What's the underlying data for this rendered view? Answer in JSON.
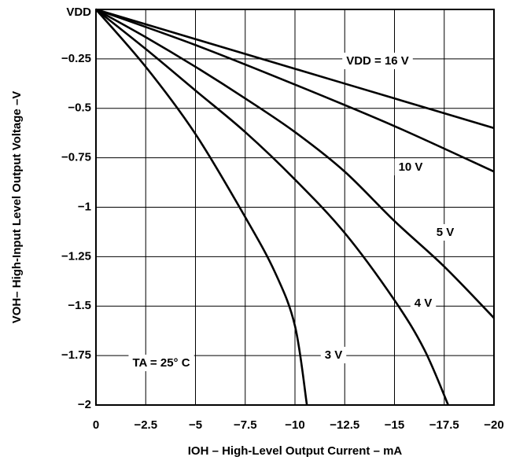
{
  "chart_data": {
    "type": "line",
    "x_label": "IOH – High-Level Output Current – mA",
    "y_label": "VOH– High-Input Level Output Voltage –V",
    "annotation": "TA = 25° C",
    "xlim": [
      0,
      -20
    ],
    "ylim": [
      -2,
      0
    ],
    "xticks": [
      0,
      {
        "value": -2.5,
        "label": "−2.5"
      },
      {
        "value": -5,
        "label": "−5"
      },
      {
        "value": -7.5,
        "label": "−7.5"
      },
      {
        "value": -10,
        "label": "−10"
      },
      {
        "value": -12.5,
        "label": "−12.5"
      },
      {
        "value": -15,
        "label": "−15"
      },
      {
        "value": -17.5,
        "label": "−17.5"
      },
      {
        "value": -20,
        "label": "−20"
      }
    ],
    "yticks": [
      {
        "value": 0,
        "label": "VDD"
      },
      {
        "value": -0.25,
        "label": "−0.25"
      },
      {
        "value": -0.5,
        "label": "−0.5"
      },
      {
        "value": -0.75,
        "label": "−0.75"
      },
      {
        "value": -1,
        "label": "−1"
      },
      {
        "value": -1.25,
        "label": "−1.25"
      },
      {
        "value": -1.5,
        "label": "−1.5"
      },
      {
        "value": -1.75,
        "label": "−1.75"
      },
      {
        "value": -2,
        "label": "−2"
      }
    ],
    "grid": true,
    "series": [
      {
        "name": "VDD = 16 V",
        "color": "#000000",
        "x": [
          0,
          -5,
          -10,
          -15,
          -20
        ],
        "values": [
          0,
          -0.15,
          -0.3,
          -0.45,
          -0.6
        ]
      },
      {
        "name": "10 V",
        "color": "#000000",
        "x": [
          0,
          -5,
          -10,
          -15,
          -20
        ],
        "values": [
          0,
          -0.18,
          -0.38,
          -0.59,
          -0.82
        ]
      },
      {
        "name": "5 V",
        "color": "#000000",
        "x": [
          0,
          -2.5,
          -5,
          -7.5,
          -10,
          -12.5,
          -15,
          -17.5,
          -20
        ],
        "values": [
          0,
          -0.14,
          -0.29,
          -0.45,
          -0.62,
          -0.82,
          -1.07,
          -1.3,
          -1.56
        ]
      },
      {
        "name": "4 V",
        "color": "#000000",
        "x": [
          0,
          -2.5,
          -5,
          -7.5,
          -10,
          -12.5,
          -15,
          -16.5,
          -17.7
        ],
        "values": [
          0,
          -0.2,
          -0.41,
          -0.62,
          -0.86,
          -1.13,
          -1.47,
          -1.72,
          -2
        ]
      },
      {
        "name": "3 V",
        "color": "#000000",
        "x": [
          0,
          -2.5,
          -5,
          -7.5,
          -9,
          -10,
          -10.6
        ],
        "values": [
          0,
          -0.29,
          -0.63,
          -1.05,
          -1.33,
          -1.6,
          -2
        ]
      }
    ]
  }
}
